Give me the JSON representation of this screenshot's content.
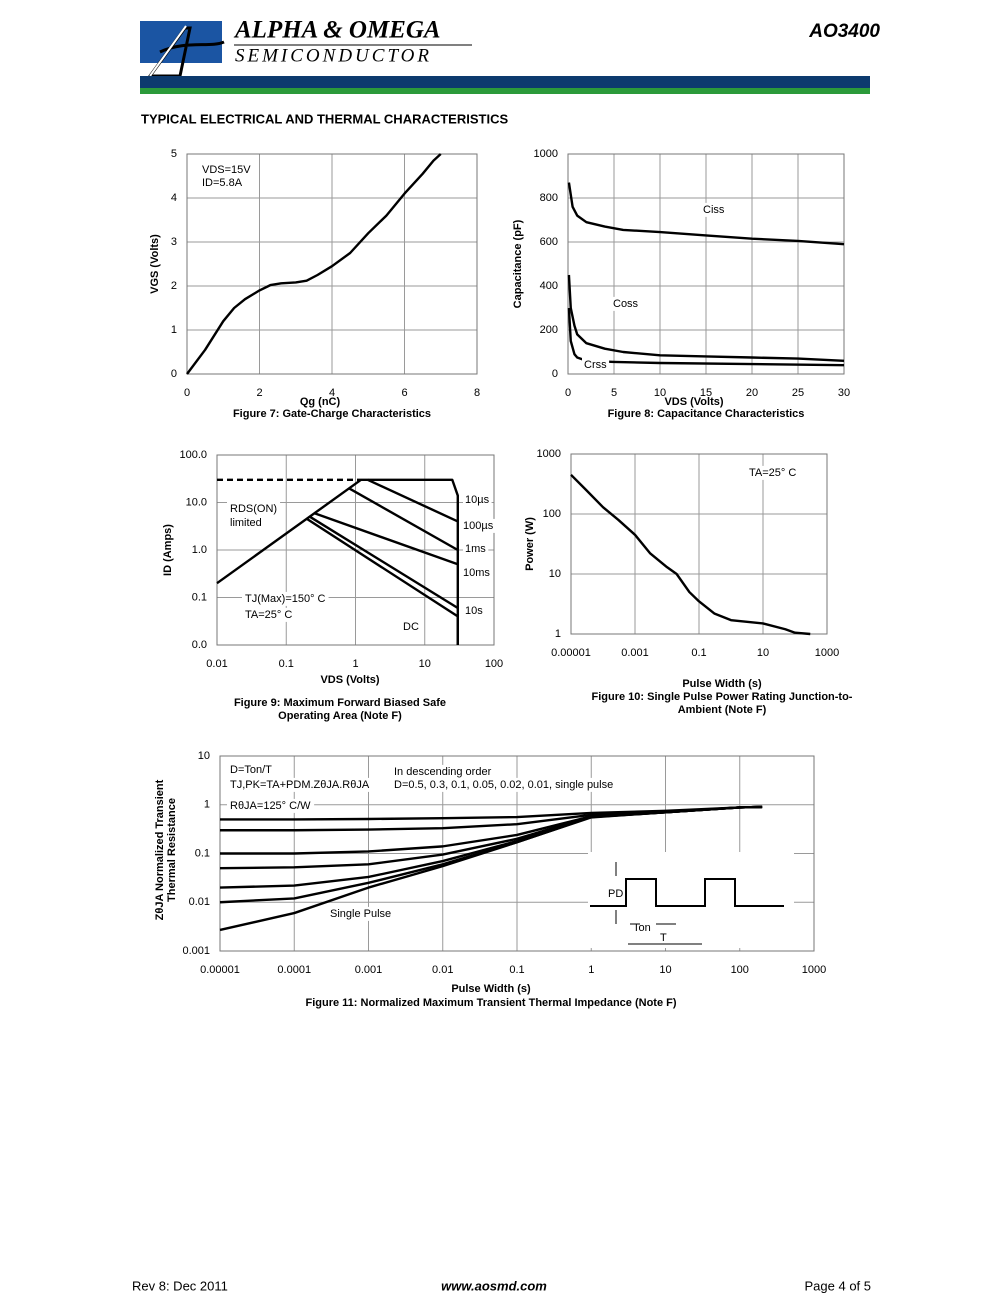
{
  "header": {
    "company": "ALPHA & OMEGA",
    "division": "SEMICONDUCTOR",
    "part": "AO3400"
  },
  "section_title": "TYPICAL ELECTRICAL AND THERMAL CHARACTERISTICS",
  "footer": {
    "revision": "Rev 8: Dec 2011",
    "website": "www.aosmd.com",
    "page": "Page 4 of 5"
  },
  "inset": {
    "pulse_power": "PD",
    "on_time": "Ton",
    "period": "T"
  },
  "chart_data": [
    {
      "type": "line",
      "title": "Figure 7: Gate-Charge Characteristics",
      "x_label": "Qg (nC)",
      "y_label": "VGS (Volts)",
      "xlim": [
        0,
        8
      ],
      "xticks": [
        0,
        2,
        4,
        6,
        8
      ],
      "ylim": [
        0,
        5
      ],
      "yticks": [
        0,
        1,
        2,
        3,
        4,
        5
      ],
      "grid": true,
      "annotations": [
        "VDS=15V",
        "ID=5.8A"
      ],
      "series": [
        {
          "color": "#000000",
          "x": [
            0,
            0.5,
            1,
            1.3,
            1.6,
            2,
            2.3,
            2.6,
            3,
            3.3,
            3.6,
            4,
            4.5,
            5,
            5.5,
            6,
            6.5,
            6.8,
            7
          ],
          "values": [
            0,
            0.55,
            1.2,
            1.5,
            1.7,
            1.9,
            2.02,
            2.06,
            2.08,
            2.12,
            2.25,
            2.45,
            2.75,
            3.2,
            3.6,
            4.1,
            4.55,
            4.85,
            5
          ]
        }
      ]
    },
    {
      "type": "line",
      "title": "Figure 8: Capacitance Characteristics",
      "x_label": "VDS (Volts)",
      "y_label": "Capacitance (pF)",
      "xlim": [
        0,
        30
      ],
      "xticks": [
        0,
        5,
        10,
        15,
        20,
        25,
        30
      ],
      "ylim": [
        0,
        1000
      ],
      "yticks": [
        0,
        200,
        400,
        600,
        800,
        1000
      ],
      "grid": true,
      "series": [
        {
          "name": "Ciss",
          "color": "#000000",
          "x": [
            0.1,
            0.5,
            1,
            2,
            4,
            6,
            10,
            15,
            20,
            25,
            30
          ],
          "values": [
            870,
            760,
            720,
            690,
            670,
            655,
            645,
            630,
            615,
            605,
            590
          ]
        },
        {
          "name": "Coss",
          "color": "#000000",
          "x": [
            0.1,
            0.3,
            0.7,
            1,
            2,
            4,
            6,
            10,
            15,
            20,
            25,
            30
          ],
          "values": [
            450,
            300,
            220,
            180,
            140,
            115,
            100,
            85,
            80,
            75,
            70,
            60
          ]
        },
        {
          "name": "Crss",
          "color": "#000000",
          "x": [
            0.1,
            0.3,
            0.7,
            1,
            2,
            5,
            10,
            20,
            30
          ],
          "values": [
            300,
            150,
            90,
            75,
            60,
            55,
            50,
            45,
            40
          ]
        }
      ]
    },
    {
      "type": "line",
      "title": [
        "Figure 9: Maximum Forward Biased Safe",
        "Operating Area (Note F)"
      ],
      "x_label": "VDS (Volts)",
      "y_label": "ID (Amps)",
      "xlog": true,
      "ylog": true,
      "xlim": [
        0.01,
        100
      ],
      "xticks": [
        0.01,
        0.1,
        1,
        10,
        100
      ],
      "ylim": [
        0.01,
        100
      ],
      "yticks": [
        {
          "value": 0.01,
          "label": "0.0"
        },
        {
          "value": 0.1,
          "label": "0.1"
        },
        {
          "value": 1,
          "label": "1.0"
        },
        {
          "value": 10,
          "label": "10.0"
        },
        {
          "value": 100,
          "label": "100.0"
        }
      ],
      "grid": true,
      "annotations": [
        "RDS(ON)",
        "limited",
        "TJ(Max)=150° C",
        "TA=25° C"
      ],
      "series": [
        {
          "color": "#000000",
          "x": [
            0.01,
            1.2
          ],
          "values": [
            0.2,
            30
          ]
        },
        {
          "color": "#000000",
          "dash": true,
          "x": [
            0.01,
            1.2
          ],
          "values": [
            30,
            30
          ]
        },
        {
          "name": "10µs",
          "color": "#000000",
          "x": [
            1.2,
            25,
            30,
            30
          ],
          "values": [
            30,
            30,
            14,
            0.01
          ]
        },
        {
          "name": "100µs",
          "color": "#000000",
          "x": [
            1.5,
            30
          ],
          "values": [
            30,
            4
          ]
        },
        {
          "name": "1ms",
          "color": "#000000",
          "x": [
            0.8,
            30
          ],
          "values": [
            20,
            1
          ]
        },
        {
          "name": "10ms",
          "color": "#000000",
          "x": [
            0.25,
            30
          ],
          "values": [
            6,
            0.5
          ]
        },
        {
          "name": "10s",
          "color": "#000000",
          "x": [
            0.22,
            30
          ],
          "values": [
            5,
            0.06
          ]
        },
        {
          "name": "DC",
          "color": "#000000",
          "x": [
            0.2,
            30,
            30
          ],
          "values": [
            4.5,
            0.04,
            0.01
          ]
        }
      ]
    },
    {
      "type": "line",
      "title": [
        "Figure 10: Single Pulse Power Rating Junction-to-",
        "Ambient (Note F)"
      ],
      "x_label": "Pulse Width (s)",
      "y_label": "Power (W)",
      "xlog": true,
      "ylog": true,
      "xlim": [
        1e-05,
        1000
      ],
      "xticks": [
        1e-05,
        0.001,
        0.1,
        10,
        1000
      ],
      "ylim": [
        1,
        1000
      ],
      "yticks": [
        1,
        10,
        100,
        1000
      ],
      "grid": true,
      "annotations": [
        "TA=25° C"
      ],
      "series": [
        {
          "color": "#000000",
          "x": [
            1e-05,
            3e-05,
            0.0001,
            0.0003,
            0.001,
            0.003,
            0.01,
            0.02,
            0.05,
            0.1,
            0.3,
            1,
            10,
            50,
            100,
            300
          ],
          "values": [
            450,
            250,
            130,
            80,
            45,
            22,
            13,
            10,
            5,
            3.5,
            2.2,
            1.7,
            1.5,
            1.2,
            1.05,
            1
          ]
        }
      ]
    },
    {
      "type": "line",
      "title": "Figure 11: Normalized Maximum Transient Thermal Impedance (Note F)",
      "x_label": "Pulse Width (s)",
      "y_label": [
        "ZθJA Normalized Transient",
        "Thermal Resistance"
      ],
      "xlog": true,
      "ylog": true,
      "xlim": [
        1e-05,
        1000
      ],
      "xticks": [
        1e-05,
        0.0001,
        0.001,
        0.01,
        0.1,
        1,
        10,
        100,
        1000
      ],
      "ylim": [
        0.001,
        10
      ],
      "yticks": [
        0.001,
        0.01,
        0.1,
        1,
        10
      ],
      "grid": true,
      "annotations": [
        "D=Ton/T",
        "TJ,PK=TA+PDM.ZθJA.RθJA",
        "RθJA=125° C/W",
        "In descending order",
        "D=0.5, 0.3, 0.1, 0.05, 0.02, 0.01, single pulse"
      ],
      "x": [
        1e-05,
        0.0001,
        0.001,
        0.01,
        0.1,
        1,
        10,
        100,
        200
      ],
      "series": [
        {
          "color": "#000000",
          "values": [
            0.5,
            0.5,
            0.51,
            0.53,
            0.56,
            0.68,
            0.75,
            0.88,
            0.9
          ]
        },
        {
          "color": "#000000",
          "values": [
            0.3,
            0.3,
            0.31,
            0.33,
            0.4,
            0.62,
            0.72,
            0.88,
            0.9
          ]
        },
        {
          "color": "#000000",
          "values": [
            0.1,
            0.1,
            0.11,
            0.14,
            0.24,
            0.58,
            0.7,
            0.88,
            0.9
          ]
        },
        {
          "color": "#000000",
          "values": [
            0.05,
            0.052,
            0.06,
            0.095,
            0.2,
            0.57,
            0.7,
            0.88,
            0.9
          ]
        },
        {
          "color": "#000000",
          "values": [
            0.02,
            0.022,
            0.033,
            0.07,
            0.18,
            0.56,
            0.7,
            0.88,
            0.9
          ]
        },
        {
          "color": "#000000",
          "values": [
            0.01,
            0.012,
            0.025,
            0.06,
            0.17,
            0.56,
            0.7,
            0.88,
            0.9
          ]
        },
        {
          "name": "Single Pulse",
          "color": "#000000",
          "values": [
            0.0027,
            0.006,
            0.02,
            0.055,
            0.17,
            0.55,
            0.7,
            0.88,
            0.9
          ]
        }
      ]
    }
  ]
}
